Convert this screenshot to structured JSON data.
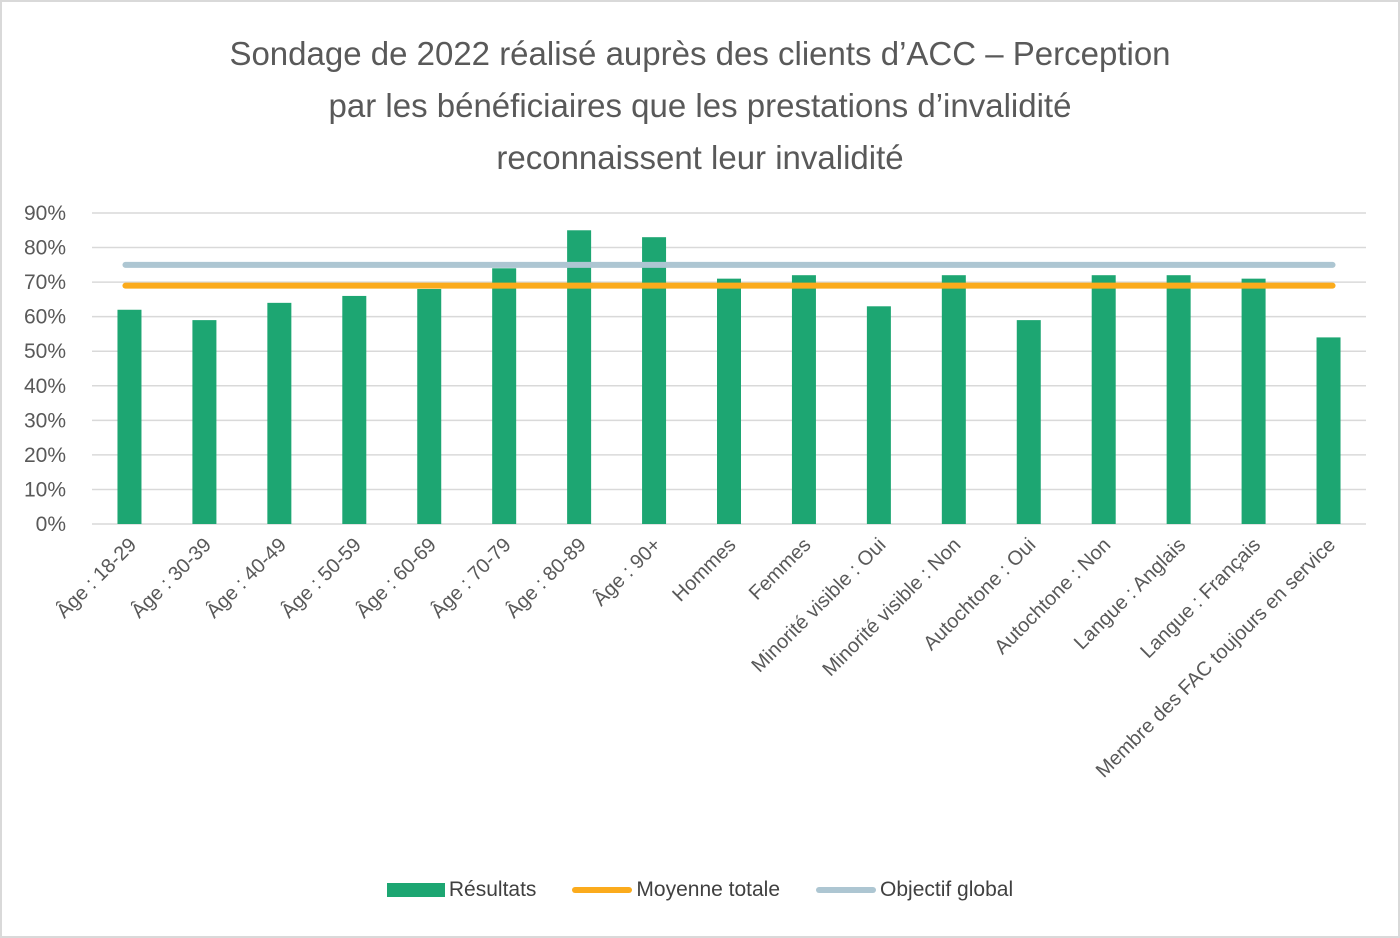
{
  "chart_data": {
    "type": "bar",
    "title_lines": [
      "Sondage de 2022 réalisé auprès des clients d’ACC – Perception",
      "par les bénéficiaires que les prestations d’invalidité",
      "reconnaissent leur invalidité"
    ],
    "categories": [
      "Âge : 18-29",
      "Âge : 30-39",
      "Âge : 40-49",
      "Âge : 50-59",
      "Âge : 60-69",
      "Âge : 70-79",
      "Âge : 80-89",
      "Âge : 90+",
      "Hommes",
      "Femmes",
      "Minorité visible : Oui",
      "Minorité visible : Non",
      "Autochtone : Oui",
      "Autochtone : Non",
      "Langue : Anglais",
      "Langue : Français",
      "Membre des FAC toujours en service"
    ],
    "series": [
      {
        "name": "Résultats",
        "type": "bar",
        "color": "#1da672",
        "values": [
          62,
          59,
          64,
          66,
          68,
          74,
          85,
          83,
          71,
          72,
          63,
          72,
          59,
          72,
          72,
          71,
          54
        ]
      },
      {
        "name": "Moyenne totale",
        "type": "line",
        "color": "#fbab1c",
        "value": 69
      },
      {
        "name": "Objectif global",
        "type": "line",
        "color": "#adc6d2",
        "value": 75
      }
    ],
    "ylim": [
      0,
      90
    ],
    "yticks": [
      "0%",
      "10%",
      "20%",
      "30%",
      "40%",
      "50%",
      "60%",
      "70%",
      "80%",
      "90%"
    ],
    "xlabel": "",
    "ylabel": "",
    "grid": true,
    "legend_position": "bottom"
  }
}
